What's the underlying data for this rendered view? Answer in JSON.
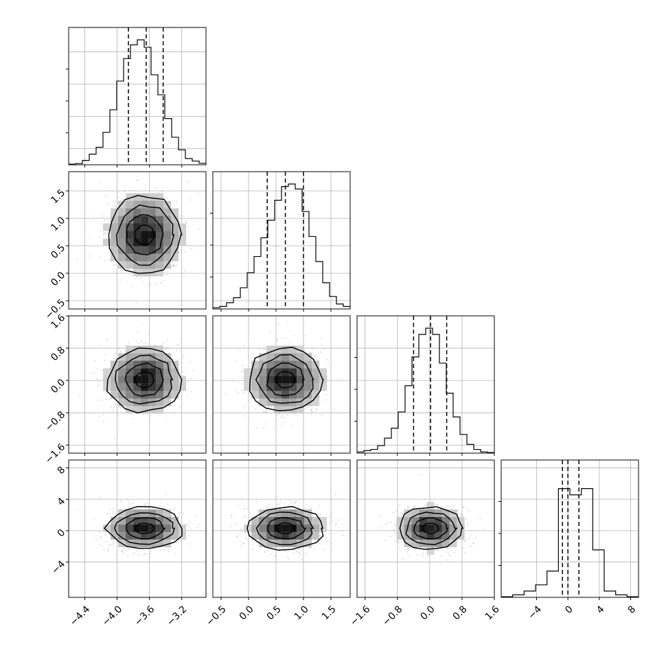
{
  "chart_data": {
    "type": "corner",
    "grid": true,
    "parameters": [
      {
        "index": 0,
        "range": [
          -4.6,
          -2.9
        ],
        "tick_values": [
          -4.4,
          -4.0,
          -3.6,
          -3.2
        ],
        "tick_labels": [
          "−4.4",
          "−4.0",
          "−3.6",
          "−3.2"
        ],
        "quantiles": [
          -3.86,
          -3.64,
          -3.43
        ],
        "histogram": [
          0.005,
          0.01,
          0.035,
          0.085,
          0.14,
          0.26,
          0.44,
          0.67,
          0.85,
          0.96,
          1.0,
          0.94,
          0.72,
          0.56,
          0.37,
          0.22,
          0.12,
          0.05,
          0.03,
          0.012
        ]
      },
      {
        "index": 1,
        "range": [
          -0.65,
          1.85
        ],
        "tick_values": [
          -0.5,
          0.0,
          0.5,
          1.0,
          1.5
        ],
        "tick_labels": [
          "−0.5",
          "0.0",
          "0.5",
          "1.0",
          "1.5"
        ],
        "quantiles": [
          0.34,
          0.67,
          1.0
        ],
        "histogram": [
          0.01,
          0.02,
          0.05,
          0.09,
          0.17,
          0.29,
          0.42,
          0.57,
          0.71,
          0.87,
          0.98,
          1.0,
          0.96,
          0.78,
          0.58,
          0.38,
          0.21,
          0.1,
          0.04,
          0.02
        ]
      },
      {
        "index": 2,
        "range": [
          -1.8,
          1.6
        ],
        "tick_values": [
          -1.6,
          -0.8,
          0.0,
          0.8,
          1.6
        ],
        "tick_labels": [
          "−1.6",
          "−0.8",
          "0.0",
          "0.8",
          "1.6"
        ],
        "quantiles": [
          -0.4,
          0.02,
          0.42
        ],
        "histogram": [
          0.01,
          0.02,
          0.03,
          0.06,
          0.12,
          0.2,
          0.33,
          0.54,
          0.77,
          0.95,
          1.0,
          0.95,
          0.72,
          0.48,
          0.29,
          0.15,
          0.07,
          0.03,
          0.01,
          0.005
        ]
      },
      {
        "index": 3,
        "range": [
          -8.5,
          9
        ],
        "tick_values": [
          -4,
          0,
          4,
          8
        ],
        "tick_labels": [
          "−4",
          "0",
          "4",
          "8"
        ],
        "quantiles": [
          -0.7,
          0.0,
          1.4
        ],
        "histogram": [
          0.005,
          0.02,
          0.05,
          0.1,
          0.21,
          0.87,
          0.82,
          0.87,
          0.38,
          0.05,
          0.02,
          0.005
        ]
      }
    ],
    "panels_2d": [
      {
        "x_param": 0,
        "y_param": 1,
        "center": [
          -3.66,
          0.7
        ],
        "sigma": [
          0.23,
          0.36
        ]
      },
      {
        "x_param": 0,
        "y_param": 2,
        "center": [
          -3.66,
          0.02
        ],
        "sigma": [
          0.23,
          0.4
        ]
      },
      {
        "x_param": 1,
        "y_param": 2,
        "center": [
          0.67,
          0.02
        ],
        "sigma": [
          0.34,
          0.4
        ]
      },
      {
        "x_param": 0,
        "y_param": 3,
        "center": [
          -3.66,
          0.3
        ],
        "sigma": [
          0.23,
          1.35
        ]
      },
      {
        "x_param": 1,
        "y_param": 3,
        "center": [
          0.67,
          0.3
        ],
        "sigma": [
          0.34,
          1.35
        ]
      },
      {
        "x_param": 2,
        "y_param": 3,
        "center": [
          0.02,
          0.3
        ],
        "sigma": [
          0.4,
          1.35
        ]
      }
    ]
  }
}
